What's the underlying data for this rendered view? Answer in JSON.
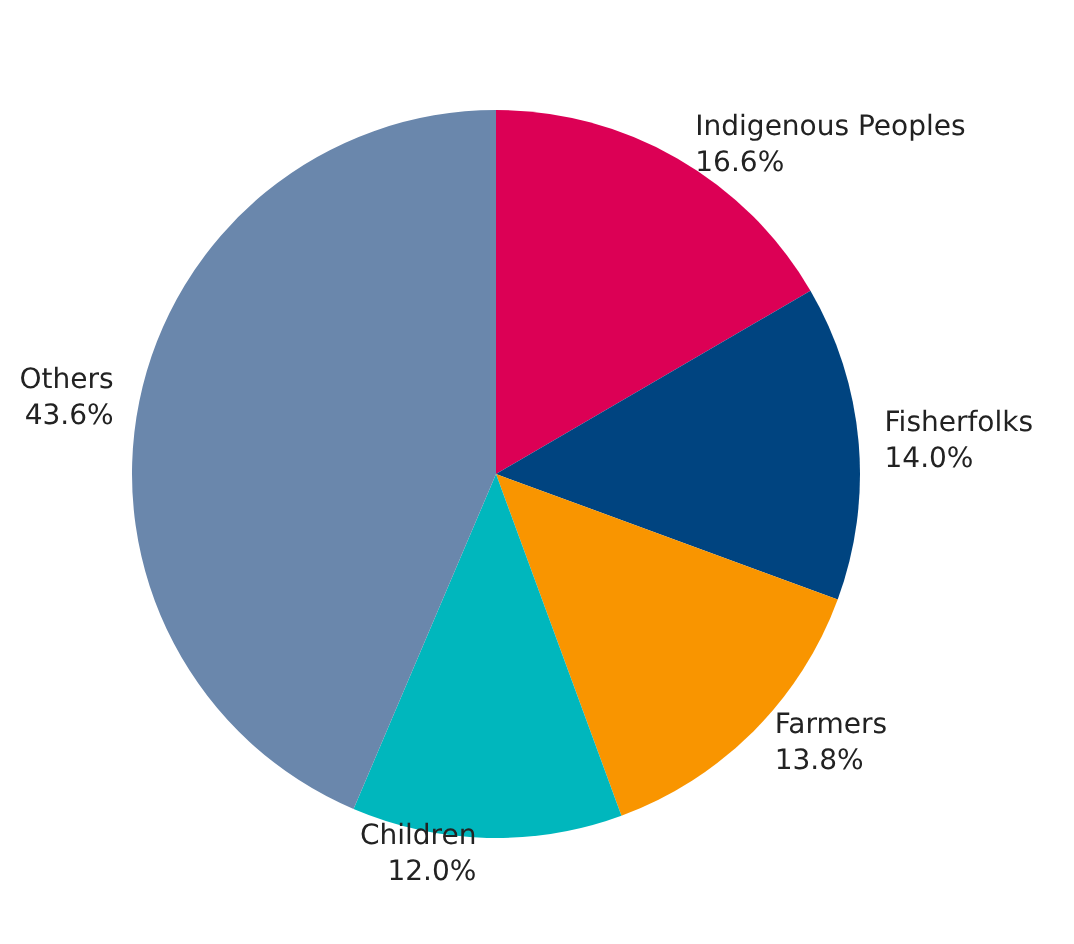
{
  "chart_data": {
    "type": "pie",
    "categories": [
      "Indigenous Peoples",
      "Fisherfolks",
      "Farmers",
      "Children",
      "Others"
    ],
    "values": [
      16.6,
      14.0,
      13.8,
      12.0,
      43.6
    ],
    "value_labels": [
      "16.6%",
      "14.0%",
      "13.8%",
      "12.0%",
      "43.6%"
    ],
    "colors": [
      "#dc0055",
      "#004480",
      "#f99500",
      "#00b7bd",
      "#6a87ac"
    ],
    "legend": false
  }
}
